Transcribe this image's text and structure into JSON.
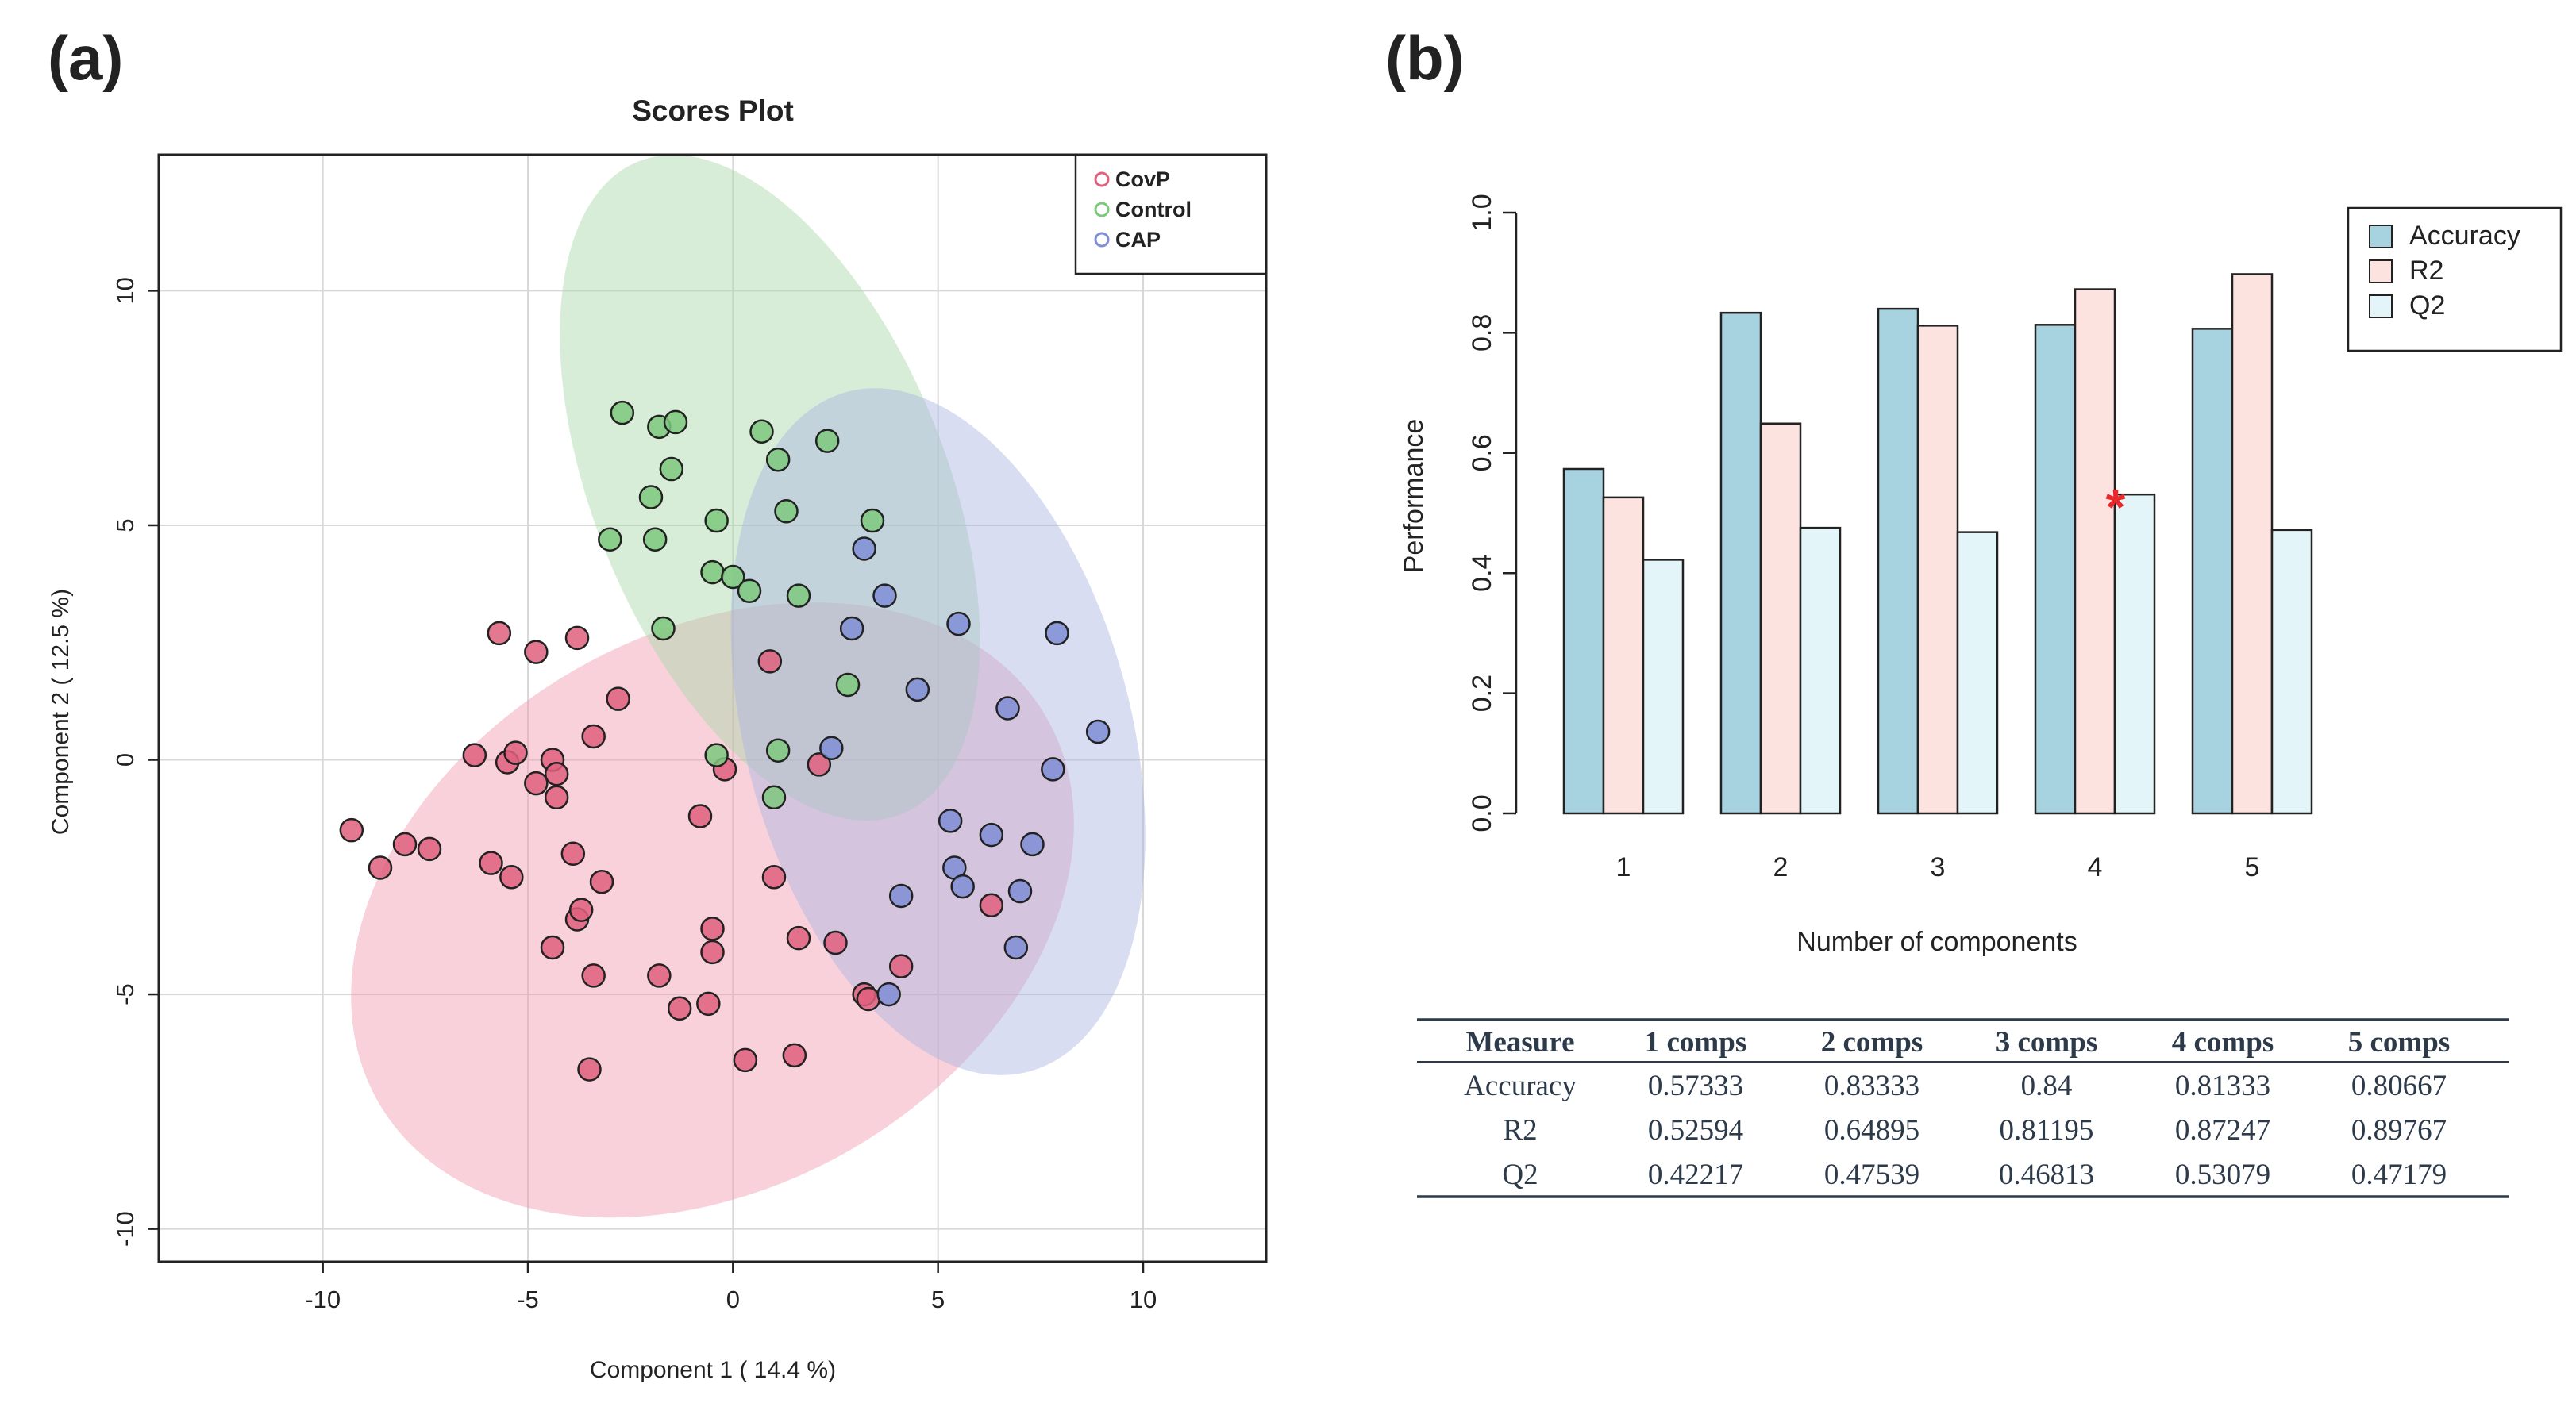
{
  "panel_a_label": "(a)",
  "panel_b_label": "(b)",
  "chart_data": [
    {
      "type": "scatter",
      "title": "Scores Plot",
      "xlabel": "Component 1 ( 14.4 %)",
      "ylabel": "Component 2 ( 12.5 %)",
      "xlim": [
        -14,
        13
      ],
      "ylim": [
        -10.7,
        12.9
      ],
      "xticks": [
        -10,
        -5,
        0,
        5,
        10
      ],
      "yticks": [
        -10,
        -5,
        0,
        5,
        10
      ],
      "xtick_labels": [
        "-10",
        "-5",
        "0",
        "5",
        "10"
      ],
      "ytick_labels": [
        "-10",
        "-5",
        "0",
        "5",
        "10"
      ],
      "grid": true,
      "legend_position": "top-right",
      "colors": {
        "CovP": "#e0607e",
        "Control": "#7ec87e",
        "CAP": "#7f8ed6"
      },
      "ellipse_colors": {
        "CovP": "#ef9aad",
        "Control": "#a9d6a9",
        "CAP": "#aab3e3"
      },
      "ellipses": [
        {
          "name": "CovP",
          "cx": -0.5,
          "cy": -3.2,
          "rx": 9.4,
          "ry": 5.9,
          "angle": -30
        },
        {
          "name": "Control",
          "cx": 0.9,
          "cy": 5.8,
          "rx": 4.3,
          "ry": 7.5,
          "angle": -22
        },
        {
          "name": "CAP",
          "cx": 5.0,
          "cy": 0.6,
          "rx": 4.7,
          "ry": 7.5,
          "angle": -15
        }
      ],
      "series": [
        {
          "name": "CovP",
          "points": [
            [
              -9.3,
              -1.5
            ],
            [
              -8.6,
              -2.3
            ],
            [
              -8.0,
              -1.8
            ],
            [
              -7.4,
              -1.9
            ],
            [
              -6.3,
              0.1
            ],
            [
              -5.9,
              -2.2
            ],
            [
              -5.7,
              2.7
            ],
            [
              -5.5,
              -0.05
            ],
            [
              -5.3,
              0.15
            ],
            [
              -5.4,
              -2.5
            ],
            [
              -4.8,
              2.3
            ],
            [
              -4.8,
              -0.5
            ],
            [
              -4.4,
              0.0
            ],
            [
              -4.3,
              -0.3
            ],
            [
              -4.3,
              -0.8
            ],
            [
              -4.4,
              -4.0
            ],
            [
              -3.9,
              -2.0
            ],
            [
              -3.8,
              -3.4
            ],
            [
              -3.7,
              -3.2
            ],
            [
              -3.8,
              2.6
            ],
            [
              -3.4,
              0.5
            ],
            [
              -3.4,
              -4.6
            ],
            [
              -3.2,
              -2.6
            ],
            [
              -2.8,
              1.3
            ],
            [
              -3.5,
              -6.6
            ],
            [
              -1.8,
              -4.6
            ],
            [
              -1.3,
              -5.3
            ],
            [
              -0.8,
              -1.2
            ],
            [
              -0.6,
              -5.2
            ],
            [
              -0.5,
              -3.6
            ],
            [
              -0.5,
              -4.1
            ],
            [
              -0.2,
              -0.2
            ],
            [
              0.3,
              -6.4
            ],
            [
              0.9,
              2.1
            ],
            [
              1.0,
              -2.5
            ],
            [
              1.5,
              -6.3
            ],
            [
              1.6,
              -3.8
            ],
            [
              2.1,
              -0.1
            ],
            [
              2.5,
              -3.9
            ],
            [
              3.2,
              -5.0
            ],
            [
              3.3,
              -5.1
            ],
            [
              4.1,
              -4.4
            ],
            [
              6.3,
              -3.1
            ]
          ]
        },
        {
          "name": "Control",
          "points": [
            [
              -2.7,
              7.4
            ],
            [
              -1.8,
              7.1
            ],
            [
              -1.4,
              7.2
            ],
            [
              -1.5,
              6.2
            ],
            [
              -2.0,
              5.6
            ],
            [
              -1.9,
              4.7
            ],
            [
              -3.0,
              4.7
            ],
            [
              -1.7,
              2.8
            ],
            [
              -0.5,
              4.0
            ],
            [
              -0.4,
              5.1
            ],
            [
              0.0,
              3.9
            ],
            [
              0.4,
              3.6
            ],
            [
              0.7,
              7.0
            ],
            [
              1.1,
              6.4
            ],
            [
              1.3,
              5.3
            ],
            [
              1.6,
              3.5
            ],
            [
              2.3,
              6.8
            ],
            [
              3.4,
              5.1
            ],
            [
              2.8,
              1.6
            ],
            [
              -0.4,
              0.1
            ],
            [
              1.1,
              0.2
            ],
            [
              1.0,
              -0.8
            ]
          ]
        },
        {
          "name": "CAP",
          "points": [
            [
              3.2,
              4.5
            ],
            [
              3.7,
              3.5
            ],
            [
              2.9,
              2.8
            ],
            [
              5.5,
              2.9
            ],
            [
              7.9,
              2.7
            ],
            [
              4.5,
              1.5
            ],
            [
              6.7,
              1.1
            ],
            [
              8.9,
              0.6
            ],
            [
              2.4,
              0.25
            ],
            [
              7.8,
              -0.2
            ],
            [
              5.3,
              -1.3
            ],
            [
              6.3,
              -1.6
            ],
            [
              7.3,
              -1.8
            ],
            [
              5.4,
              -2.3
            ],
            [
              5.6,
              -2.7
            ],
            [
              4.1,
              -2.9
            ],
            [
              7.0,
              -2.8
            ],
            [
              6.9,
              -4.0
            ],
            [
              3.8,
              -5.0
            ]
          ]
        }
      ]
    },
    {
      "type": "bar",
      "categories": [
        "1",
        "2",
        "3",
        "4",
        "5"
      ],
      "xlabel": "Number of components",
      "ylabel": "Performance",
      "ylim": [
        0,
        1.0
      ],
      "yticks": [
        0.0,
        0.2,
        0.4,
        0.6,
        0.8,
        1.0
      ],
      "ytick_labels": [
        "0.0",
        "0.2",
        "0.4",
        "0.6",
        "0.8",
        "1.0"
      ],
      "legend_position": "top-right",
      "series": [
        {
          "name": "Accuracy",
          "color": "#a7d3e0",
          "values": [
            0.57333,
            0.83333,
            0.84,
            0.81333,
            0.80667
          ]
        },
        {
          "name": "R2",
          "color": "#fce3df",
          "values": [
            0.52594,
            0.64895,
            0.81195,
            0.87247,
            0.89767
          ]
        },
        {
          "name": "Q2",
          "color": "#e3f5f8",
          "values": [
            0.42217,
            0.47539,
            0.46813,
            0.53079,
            0.47179
          ]
        }
      ],
      "annotation": {
        "text": "*",
        "category": "4",
        "series": "Q2",
        "color": "#e8282a"
      }
    }
  ],
  "table": {
    "headers": [
      "Measure",
      "1 comps",
      "2 comps",
      "3 comps",
      "4 comps",
      "5 comps"
    ],
    "rows": [
      [
        "Accuracy",
        "0.57333",
        "0.83333",
        "0.84",
        "0.81333",
        "0.80667"
      ],
      [
        "R2",
        "0.52594",
        "0.64895",
        "0.81195",
        "0.87247",
        "0.89767"
      ],
      [
        "Q2",
        "0.42217",
        "0.47539",
        "0.46813",
        "0.53079",
        "0.47179"
      ]
    ]
  }
}
